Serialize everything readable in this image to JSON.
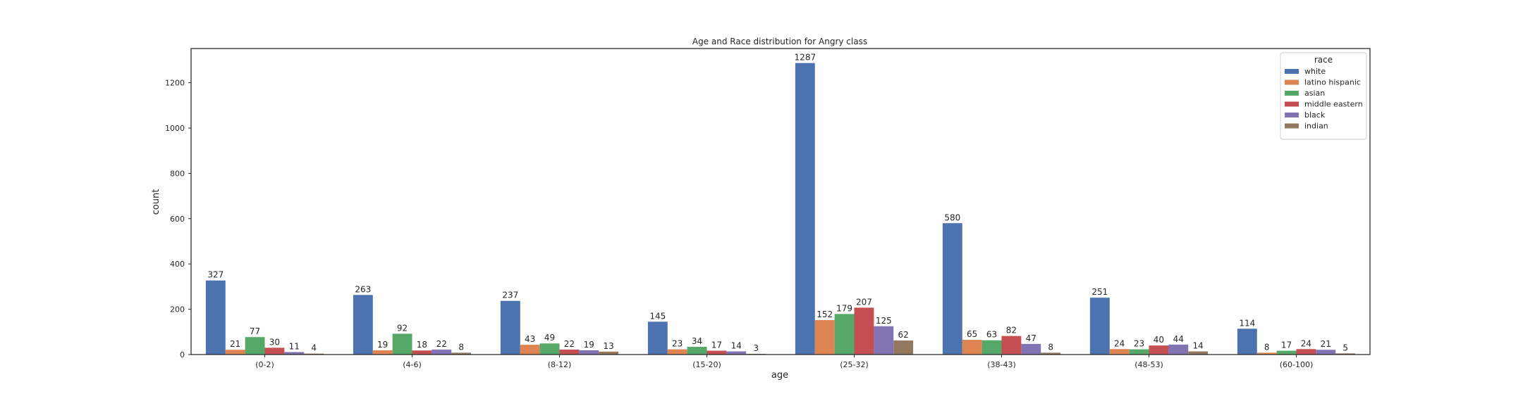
{
  "chart_data": {
    "type": "bar",
    "title": "Age and Race distribution for Angry class",
    "xlabel": "age",
    "ylabel": "count",
    "ylim": [
      0,
      1351
    ],
    "yticks": [
      0,
      200,
      400,
      600,
      800,
      1000,
      1200
    ],
    "grid": false,
    "legend": {
      "title": "race",
      "position": "top-right"
    },
    "categories": [
      "(0-2)",
      "(4-6)",
      "(8-12)",
      "(15-20)",
      "(25-32)",
      "(38-43)",
      "(48-53)",
      "(60-100)"
    ],
    "series": [
      {
        "name": "white",
        "color": "#4c72b0",
        "values": [
          327,
          263,
          237,
          145,
          1287,
          580,
          251,
          114
        ]
      },
      {
        "name": "latino hispanic",
        "color": "#dd8452",
        "values": [
          21,
          19,
          43,
          23,
          152,
          65,
          24,
          8
        ]
      },
      {
        "name": "asian",
        "color": "#55a868",
        "values": [
          77,
          92,
          49,
          34,
          179,
          63,
          23,
          17
        ]
      },
      {
        "name": "middle eastern",
        "color": "#c44e52",
        "values": [
          30,
          18,
          22,
          17,
          207,
          82,
          40,
          24
        ]
      },
      {
        "name": "black",
        "color": "#8172b3",
        "values": [
          11,
          22,
          19,
          14,
          125,
          47,
          44,
          21
        ]
      },
      {
        "name": "indian",
        "color": "#937860",
        "values": [
          4,
          8,
          13,
          3,
          62,
          8,
          14,
          5
        ]
      }
    ]
  }
}
